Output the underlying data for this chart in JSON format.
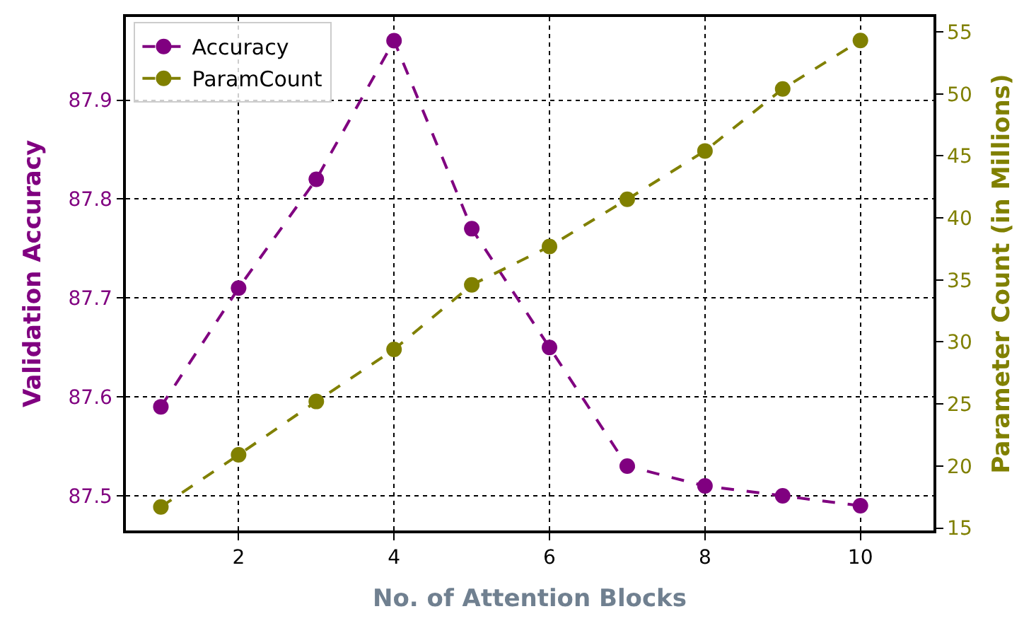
{
  "chart_data": {
    "type": "line",
    "xlabel": "No. of Attention Blocks",
    "ylabel": "Validation Accuracy",
    "y2label": "Parameter Count (in Millions)",
    "x": [
      1,
      2,
      3,
      4,
      5,
      6,
      7,
      8,
      9,
      10
    ],
    "series": [
      {
        "name": "Accuracy",
        "color": "#800080",
        "values": [
          87.59,
          87.71,
          87.82,
          87.96,
          87.77,
          87.65,
          87.53,
          87.51,
          87.5,
          87.49
        ]
      },
      {
        "name": "ParamCount",
        "color": "#808000",
        "axis": "y2",
        "values": [
          16.7,
          20.9,
          25.2,
          29.4,
          34.6,
          37.7,
          41.5,
          45.4,
          50.4,
          54.3
        ]
      }
    ],
    "xlim": [
      0.55,
      10.94
    ],
    "xticks": [
      2,
      4,
      6,
      8,
      10
    ],
    "ylim": [
      87.465,
      87.984
    ],
    "yticks": [
      87.5,
      87.6,
      87.7,
      87.8,
      87.9
    ],
    "y2lim": [
      14.8,
      56.2
    ],
    "y2ticks": [
      15,
      20,
      25,
      30,
      35,
      40,
      45,
      50,
      55
    ],
    "grid": true,
    "legend": "top left",
    "marker": "circle",
    "line_style": "dashed"
  }
}
